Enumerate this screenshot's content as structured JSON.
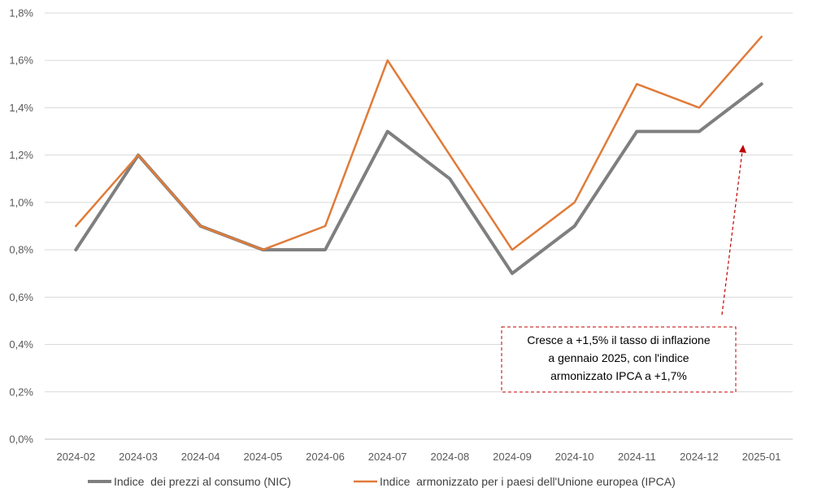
{
  "chart_data": {
    "type": "line",
    "title": "",
    "xlabel": "",
    "ylabel": "",
    "categories": [
      "2024-02",
      "2024-03",
      "2024-04",
      "2024-05",
      "2024-06",
      "2024-07",
      "2024-08",
      "2024-09",
      "2024-10",
      "2024-11",
      "2024-12",
      "2025-01"
    ],
    "yticks": [
      "0,0%",
      "0,2%",
      "0,4%",
      "0,6%",
      "0,8%",
      "1,0%",
      "1,2%",
      "1,4%",
      "1,6%",
      "1,8%"
    ],
    "ylim": [
      0,
      1.8
    ],
    "grid": true,
    "legend_position": "bottom",
    "series": [
      {
        "name": "Indice  dei prezzi al consumo (NIC)",
        "color": "#7f7f7f",
        "values": [
          0.8,
          1.2,
          0.9,
          0.8,
          0.8,
          1.3,
          1.1,
          0.7,
          0.9,
          1.3,
          1.3,
          1.5
        ]
      },
      {
        "name": "Indice  armonizzato per i paesi dell'Unione europea (IPCA)",
        "color": "#e07b39",
        "values": [
          0.9,
          1.2,
          0.9,
          0.8,
          0.9,
          1.6,
          1.2,
          0.8,
          1.0,
          1.5,
          1.4,
          1.7
        ]
      }
    ],
    "annotation": {
      "lines": [
        "Cresce a +1,5% il tasso di inflazione",
        "a gennaio 2025, con l'indice",
        "armonizzato IPCA a +1,7%"
      ],
      "border_color": "#c00000",
      "arrow_color": "#c00000"
    }
  }
}
